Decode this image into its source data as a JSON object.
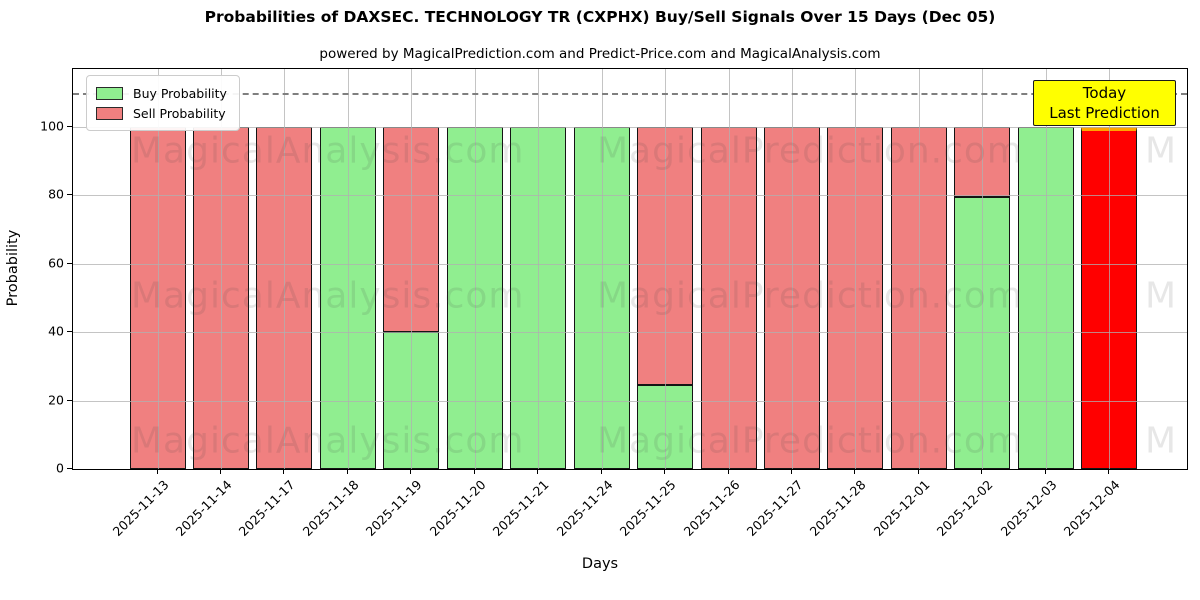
{
  "title": "Probabilities of DAXSEC. TECHNOLOGY TR (CXPHX) Buy/Sell Signals Over 15 Days (Dec 05)",
  "subtitle": "powered by MagicalPrediction.com and Predict-Price.com and MagicalAnalysis.com",
  "legend": {
    "items": [
      {
        "label": "Buy Probability",
        "color": "#90ee90"
      },
      {
        "label": "Sell Probability",
        "color": "#f08080"
      }
    ]
  },
  "annotation_box": {
    "line1": "Today",
    "line2": "Last Prediction",
    "bg_color": "#ffff00"
  },
  "watermarks": {
    "left_text": "MagicalAnalysis.com",
    "right_text": "MagicalPrediction.com",
    "clipped_text": "M"
  },
  "axes": {
    "xlabel": "Days",
    "ylabel": "Probability",
    "yticks": [
      0,
      20,
      40,
      60,
      80,
      100
    ]
  },
  "chart_data": {
    "type": "bar",
    "stacked": true,
    "title": "Probabilities of DAXSEC. TECHNOLOGY TR (CXPHX) Buy/Sell Signals Over 15 Days (Dec 05)",
    "xlabel": "Days",
    "ylabel": "Probability",
    "ylim": [
      0,
      117
    ],
    "grid": true,
    "dashed_reference_line_y": 110,
    "legend_position": "upper left",
    "categories": [
      "2025-11-13",
      "2025-11-14",
      "2025-11-17",
      "2025-11-18",
      "2025-11-19",
      "2025-11-20",
      "2025-11-21",
      "2025-11-24",
      "2025-11-25",
      "2025-11-26",
      "2025-11-27",
      "2025-11-28",
      "2025-12-01",
      "2025-12-02",
      "2025-12-03",
      "2025-12-04"
    ],
    "series": [
      {
        "name": "Buy Probability",
        "color": "#90ee90",
        "values": [
          0,
          0,
          0,
          100,
          40,
          100,
          100,
          100,
          24.5,
          0,
          0,
          0,
          0,
          79.5,
          100,
          0
        ]
      },
      {
        "name": "Sell Probability",
        "color": "#f08080",
        "values": [
          100,
          100,
          100,
          0,
          60,
          0,
          0,
          0,
          75.5,
          100,
          100,
          100,
          100,
          20.5,
          0,
          100
        ]
      }
    ],
    "highlight_last_bar": {
      "index": 15,
      "fill_color": "#ff0000",
      "top_edge_color": "#ffa500",
      "meaning": "Today / Last Prediction"
    }
  }
}
